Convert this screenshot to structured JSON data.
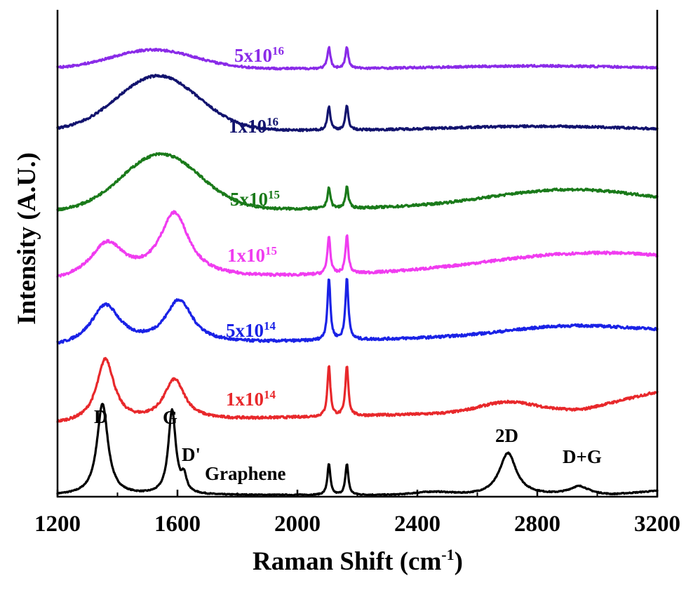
{
  "chart_data": {
    "type": "line",
    "title": "",
    "xlabel": "Raman Shift (cm",
    "xlabel_sup": "-1",
    "xlabel_tail": ")",
    "ylabel": "Intensity (A.U.)",
    "xlim": [
      1200,
      3200
    ],
    "xticks": [
      "1200",
      "1600",
      "2000",
      "2400",
      "2800",
      "3200"
    ],
    "grid": false,
    "legend": "inline labels beside each curve",
    "series": [
      {
        "name": "Graphene",
        "color": "#000000",
        "peaks": [
          {
            "x": 1350,
            "label": "D"
          },
          {
            "x": 1582,
            "label": "G"
          },
          {
            "x": 1620,
            "label": "D'"
          },
          {
            "x": 2700,
            "label": "2D"
          },
          {
            "x": 2940,
            "label": "D+G"
          }
        ]
      },
      {
        "name": "1x10",
        "sup": "14",
        "color": "#e8282b"
      },
      {
        "name": "5x10",
        "sup": "14",
        "color": "#1a22e6"
      },
      {
        "name": "1x10",
        "sup": "15",
        "color": "#f03cf0"
      },
      {
        "name": "5x10",
        "sup": "15",
        "color": "#1a7a1a"
      },
      {
        "name": "1x10",
        "sup": "16",
        "color": "#12136e"
      },
      {
        "name": "5x10",
        "sup": "16",
        "color": "#8a2be8"
      }
    ]
  }
}
